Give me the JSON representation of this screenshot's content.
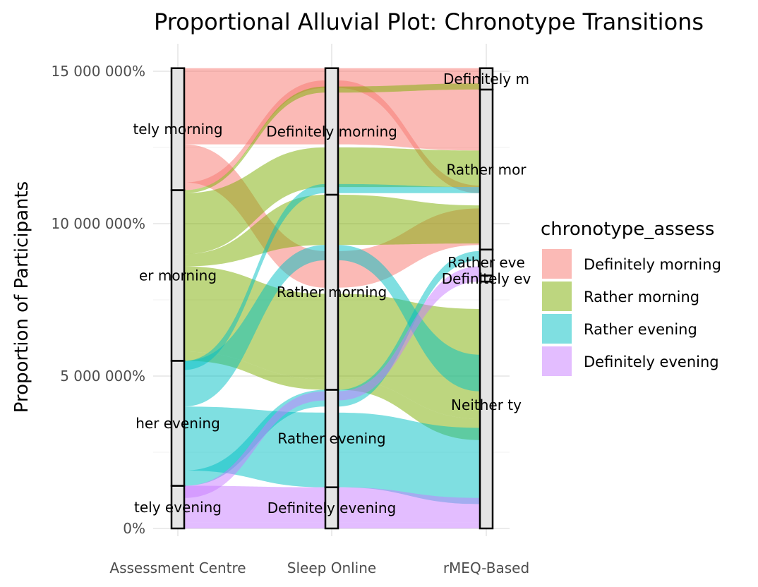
{
  "chart_data": {
    "type": "alluvial",
    "title": "Proportional Alluvial Plot: Chronotype Transitions",
    "ylabel": "Proportion of Participants",
    "xlabel": "",
    "ylim": [
      0,
      15000000
    ],
    "y_ticks": [
      {
        "value": 0,
        "label": "0%"
      },
      {
        "value": 5000000,
        "label": "5 000 000%"
      },
      {
        "value": 10000000,
        "label": "10 000 000%"
      },
      {
        "value": 15000000,
        "label": "15 000 000%"
      }
    ],
    "axes": [
      "Assessment Centre",
      "Sleep Online",
      "rMEQ-Based"
    ],
    "legend": {
      "title": "chronotype_assess",
      "position": "right",
      "entries": [
        {
          "name": "Definitely morning",
          "color": "#F8766D"
        },
        {
          "name": "Rather morning",
          "color": "#7CAE00"
        },
        {
          "name": "Rather evening",
          "color": "#00BFC4"
        },
        {
          "name": "Definitely evening",
          "color": "#C77CFF"
        }
      ]
    },
    "strata": [
      [
        {
          "name": "Definitely evening",
          "label": "tely evening",
          "range": [
            0,
            1400000
          ]
        },
        {
          "name": "Rather evening",
          "label": "her evening",
          "range": [
            1400000,
            5500000
          ]
        },
        {
          "name": "Rather morning",
          "label": "er morning",
          "range": [
            5500000,
            11100000
          ]
        },
        {
          "name": "Definitely morning",
          "label": "tely morning",
          "range": [
            11100000,
            15100000
          ]
        }
      ],
      [
        {
          "name": "Definitely evening",
          "label": "Definitely evening",
          "range": [
            0,
            1350000
          ]
        },
        {
          "name": "Rather evening",
          "label": "Rather evening",
          "range": [
            1350000,
            4550000
          ]
        },
        {
          "name": "Rather morning",
          "label": "Rather morning",
          "range": [
            4550000,
            10950000
          ]
        },
        {
          "name": "Definitely morning",
          "label": "Definitely morning",
          "range": [
            10950000,
            15100000
          ]
        }
      ],
      [
        {
          "name": "Neither type",
          "label": "Neither ty",
          "range": [
            0,
            8100000
          ]
        },
        {
          "name": "Definitely evening",
          "label": "Definitely ev",
          "range": [
            8100000,
            8300000
          ]
        },
        {
          "name": "Rather evening",
          "label": "Rather eve",
          "range": [
            8300000,
            9150000
          ]
        },
        {
          "name": "Rather morning",
          "label": "Rather mor",
          "range": [
            9150000,
            14400000
          ]
        },
        {
          "name": "Definitely morning",
          "label": "Definitely m",
          "range": [
            14400000,
            15100000
          ]
        }
      ]
    ],
    "flows": [
      {
        "fill": "Definitely morning",
        "a": [
          12600000,
          15100000
        ],
        "b": [
          12600000,
          15100000
        ],
        "c": [
          12400000,
          15100000
        ]
      },
      {
        "fill": "Definitely morning",
        "a": [
          11350000,
          12600000
        ],
        "b": [
          7900000,
          9100000
        ],
        "c": [
          9300000,
          10500000
        ]
      },
      {
        "fill": "Definitely morning",
        "a": [
          11100000,
          11350000
        ],
        "b": [
          14450000,
          14700000
        ],
        "c": [
          11000000,
          11250000
        ]
      },
      {
        "fill": "Rather morning",
        "a": [
          5800000,
          8600000
        ],
        "b": [
          4900000,
          7700000
        ],
        "c": [
          3600000,
          7200000
        ]
      },
      {
        "fill": "Rather morning",
        "a": [
          9000000,
          11000000
        ],
        "b": [
          11200000,
          12500000
        ],
        "c": [
          11200000,
          12400000
        ]
      },
      {
        "fill": "Rather morning",
        "a": [
          8600000,
          9000000
        ],
        "b": [
          9300000,
          10950000
        ],
        "c": [
          9350000,
          10600000
        ]
      },
      {
        "fill": "Rather morning",
        "a": [
          11000000,
          11100000
        ],
        "b": [
          14300000,
          14500000
        ],
        "c": [
          14400000,
          14600000
        ]
      },
      {
        "fill": "Rather morning",
        "a": [
          5500000,
          5800000
        ],
        "b": [
          4550000,
          4900000
        ],
        "c": [
          2900000,
          3600000
        ]
      },
      {
        "fill": "Rather evening",
        "a": [
          1900000,
          4000000
        ],
        "b": [
          1350000,
          3800000
        ],
        "c": [
          800000,
          3300000
        ]
      },
      {
        "fill": "Rather evening",
        "a": [
          4000000,
          5500000
        ],
        "b": [
          8800000,
          9300000
        ],
        "c": [
          4500000,
          5700000
        ]
      },
      {
        "fill": "Rather evening",
        "a": [
          1400000,
          1900000
        ],
        "b": [
          4000000,
          4550000
        ],
        "c": [
          8800000,
          9100000
        ]
      },
      {
        "fill": "Rather evening",
        "a": [
          5200000,
          5500000
        ],
        "b": [
          11000000,
          11300000
        ],
        "c": [
          11000000,
          11200000
        ]
      },
      {
        "fill": "Definitely evening",
        "a": [
          200000,
          1400000
        ],
        "b": [
          200000,
          1350000
        ],
        "c": [
          200000,
          1000000
        ]
      },
      {
        "fill": "Definitely evening",
        "a": [
          1000000,
          1400000
        ],
        "b": [
          4200000,
          4500000
        ],
        "c": [
          8100000,
          8600000
        ]
      },
      {
        "fill": "Definitely evening",
        "a": [
          0,
          200000
        ],
        "b": [
          0,
          200000
        ],
        "c": [
          0,
          200000
        ]
      }
    ]
  }
}
